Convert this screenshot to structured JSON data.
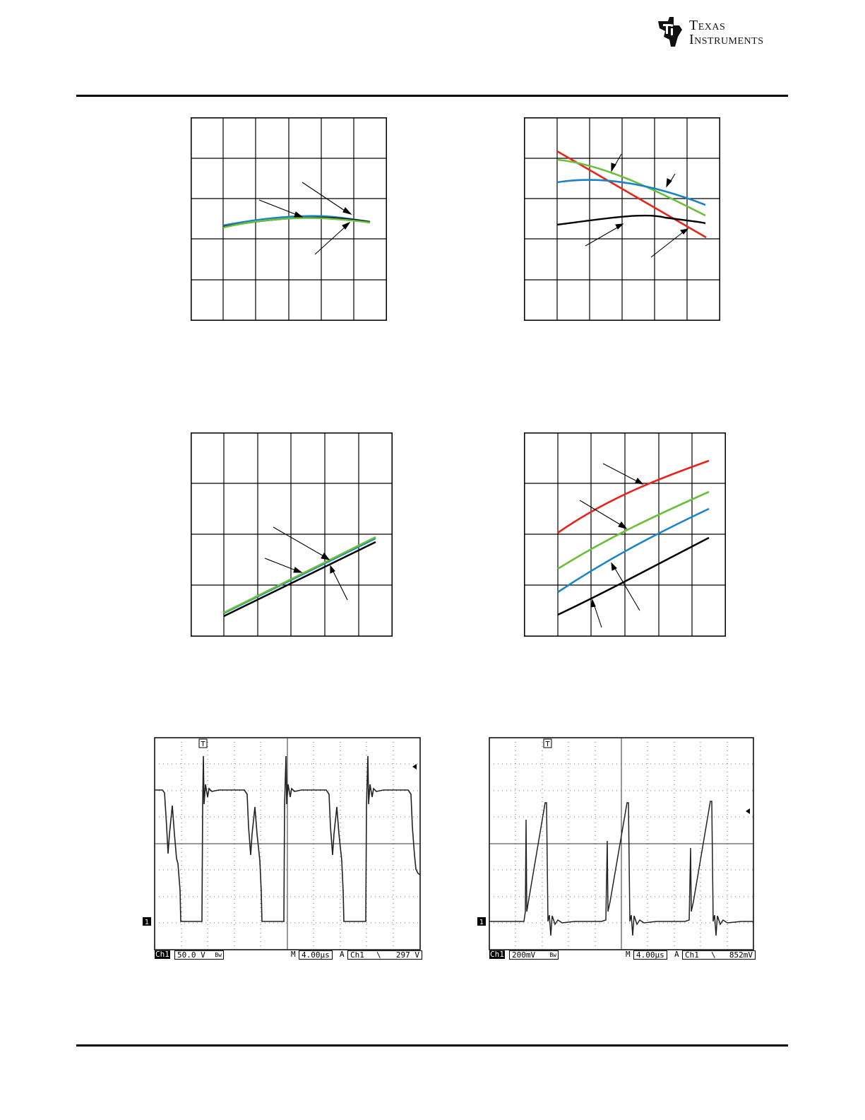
{
  "header": {
    "logo_line1": "Texas",
    "logo_line2": "Instruments",
    "brand_color": "#000000"
  },
  "colors": {
    "blue": "#1a84c6",
    "green": "#6cbf3a",
    "black": "#000000",
    "red": "#e8221c",
    "arrow": "#000000"
  },
  "scopes": [
    {
      "ch_label": "Ch1",
      "volts_div": "50.0 V",
      "coupling_glyph": "Bw",
      "timebase_prefix": "M",
      "timebase": "4.00µs",
      "trigger_prefix": "A",
      "trigger_source": "Ch1",
      "slope_glyph": "\\",
      "trigger_level": "297 V",
      "trigger_marker": "T",
      "ground_marker": "1"
    },
    {
      "ch_label": "Ch1",
      "volts_div": "200mV",
      "coupling_glyph": "Bw",
      "timebase_prefix": "M",
      "timebase": "4.00µs",
      "trigger_prefix": "A",
      "trigger_source": "Ch1",
      "slope_glyph": "\\",
      "trigger_level": "852mV",
      "trigger_marker": "T",
      "ground_marker": "1"
    }
  ]
}
